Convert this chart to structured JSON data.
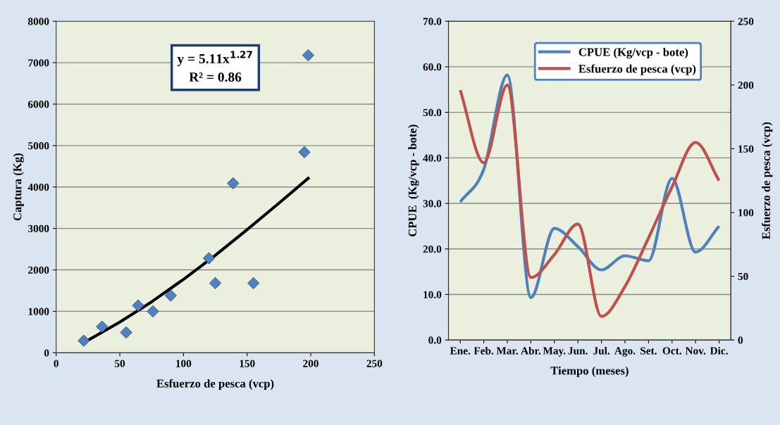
{
  "chart_data": [
    {
      "type": "scatter",
      "xlabel": "Esfuerzo de pesca (vcp)",
      "ylabel": "Captura (Kg)",
      "xlim": [
        0,
        250
      ],
      "xticks": [
        0,
        50,
        100,
        150,
        200,
        250
      ],
      "ylim": [
        0,
        8000
      ],
      "yticks": [
        0,
        1000,
        2000,
        3000,
        4000,
        5000,
        6000,
        7000,
        8000
      ],
      "grid": "y",
      "legend": false,
      "annotations": [
        "y = 5.11x$^{1.27}$\nR² = 0.86"
      ],
      "series": [
        {
          "type": "scatter",
          "marker": "diamond",
          "color": "#4f81bd",
          "x": [
            21.7,
            36,
            55,
            64.4,
            76,
            90,
            120,
            125,
            139,
            155,
            195,
            198
          ],
          "values": [
            290,
            630,
            490,
            1140,
            1000,
            1380,
            2280,
            1680,
            4090,
            1680,
            4840,
            7180
          ]
        },
        {
          "type": "line",
          "color": "#000000",
          "x": [
            25,
            50,
            75,
            100,
            125,
            150,
            175,
            198
          ],
          "values": [
            300,
            740,
            1230,
            1770,
            2350,
            2970,
            3610,
            4210
          ]
        }
      ]
    },
    {
      "type": "line",
      "categories": [
        "Ene.",
        "Feb.",
        "Mar.",
        "Abr.",
        "May.",
        "Jun.",
        "Jul.",
        "Ago.",
        "Set.",
        "Oct.",
        "Nov.",
        "Dic."
      ],
      "xlabel": "Tiempo (meses)",
      "ylabel": "CPUE  (Kg/vcp - bote)",
      "y2label": "Esfuerzo de pesca (vcp)",
      "ylim": [
        0,
        70
      ],
      "yticks": [
        {
          "value": 0,
          "label": "0.0"
        },
        {
          "value": 10,
          "label": "10.0"
        },
        {
          "value": 20,
          "label": "20.0"
        },
        {
          "value": 30,
          "label": "30.0"
        },
        {
          "value": 40,
          "label": "40.0"
        },
        {
          "value": 50,
          "label": "50.0"
        },
        {
          "value": 60,
          "label": "60.0"
        },
        {
          "value": 70,
          "label": "70.0"
        }
      ],
      "y2lim": [
        0,
        250
      ],
      "y2ticks": [
        0,
        50,
        100,
        150,
        200,
        250
      ],
      "grid": "y",
      "legend": "top",
      "series": [
        {
          "name": "CPUE (Kg/vcp - bote)",
          "color": "#4f81bd",
          "values": [
            30.3,
            37.5,
            58.2,
            9.3,
            24.5,
            20.5,
            15.4,
            18.5,
            17.4,
            35.5,
            19.3,
            25.0
          ]
        },
        {
          "name": "Esfuerzo de pesca (vcp)",
          "color": "#c0504d",
          "axis": "y2",
          "values": [
            196,
            139,
            200,
            49,
            67,
            91,
            18.5,
            42,
            80,
            120,
            155,
            125
          ]
        }
      ]
    }
  ]
}
